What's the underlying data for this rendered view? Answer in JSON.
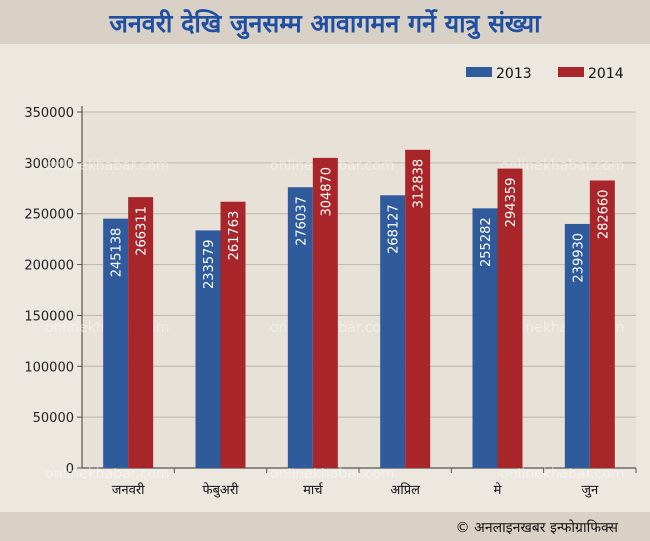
{
  "chart_data": {
    "type": "bar",
    "title": "जनवरी देखि जुनसम्म आवागमन गर्ने यात्रु संख्या",
    "categories": [
      "जनवरी",
      "फेबुअरी",
      "मार्च",
      "अप्रिल",
      "मे",
      "जुन"
    ],
    "series": [
      {
        "name": "2013",
        "color": "#2f5b9c",
        "values": [
          245138,
          233579,
          276037,
          268127,
          255282,
          239930
        ]
      },
      {
        "name": "2014",
        "color": "#a8262a",
        "values": [
          266311,
          261763,
          304870,
          312838,
          294359,
          282660
        ]
      }
    ],
    "ylim": [
      0,
      350000
    ],
    "yticks": [
      0,
      50000,
      100000,
      150000,
      200000,
      250000,
      300000,
      350000
    ],
    "grid": true,
    "legend": "top-right",
    "data_labels": true
  },
  "watermark": "onlinekhabar.com",
  "credit": "© अनलाइनखबर इन्फोग्राफिक्स"
}
